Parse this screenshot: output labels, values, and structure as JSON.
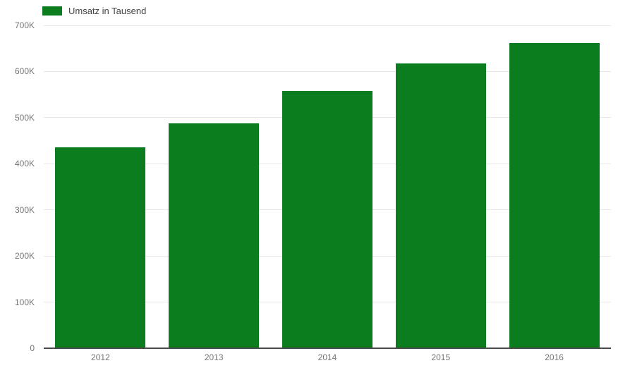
{
  "chart_data": {
    "type": "bar",
    "title": "",
    "xlabel": "",
    "ylabel": "",
    "unit": "K",
    "categories": [
      "2012",
      "2013",
      "2014",
      "2015",
      "2016"
    ],
    "series": [
      {
        "name": "Umsatz in Tausend",
        "color": "#0b7d1f",
        "values": [
          436,
          488,
          558,
          618,
          662
        ]
      }
    ],
    "ylim": [
      0,
      700
    ],
    "ytick_step": 100,
    "ytick_labels": [
      "0",
      "100K",
      "200K",
      "300K",
      "400K",
      "500K",
      "600K",
      "700K"
    ],
    "grid": true,
    "legend_position": "top"
  },
  "legend": {
    "label": "Umsatz in Tausend"
  },
  "colors": {
    "bar": "#0b7d1f",
    "gridline": "#e8e8e8",
    "baseline": "#4a4a4a",
    "tick_label": "#757575",
    "legend_text": "#444444",
    "background": "#ffffff"
  }
}
